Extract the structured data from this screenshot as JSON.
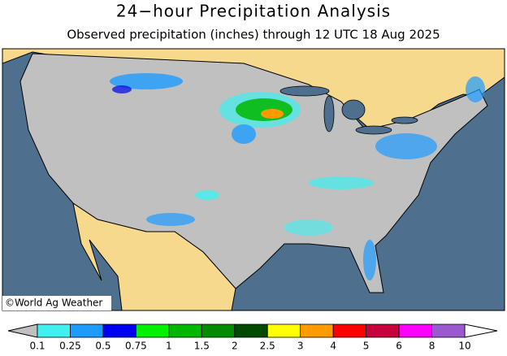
{
  "header": {
    "title": "24−hour Precipitation Analysis",
    "subtitle": "Observed precipitation (inches) through 12 UTC 18 Aug 2025"
  },
  "map": {
    "credit": "©World Ag Weather"
  },
  "legend": {
    "levels": [
      0.1,
      0.25,
      0.5,
      0.75,
      1,
      1.5,
      2,
      2.5,
      3,
      4,
      5,
      6,
      8,
      10
    ],
    "colors": [
      "#40f0f0",
      "#1e9bff",
      "#0000f0",
      "#00f000",
      "#00b800",
      "#008c00",
      "#004b00",
      "#ffff00",
      "#ff9a00",
      "#ff0000",
      "#c8003c",
      "#ff00ff",
      "#9b59d0"
    ],
    "under_color": "#c0c0c0",
    "over_color": "#ffffff"
  }
}
